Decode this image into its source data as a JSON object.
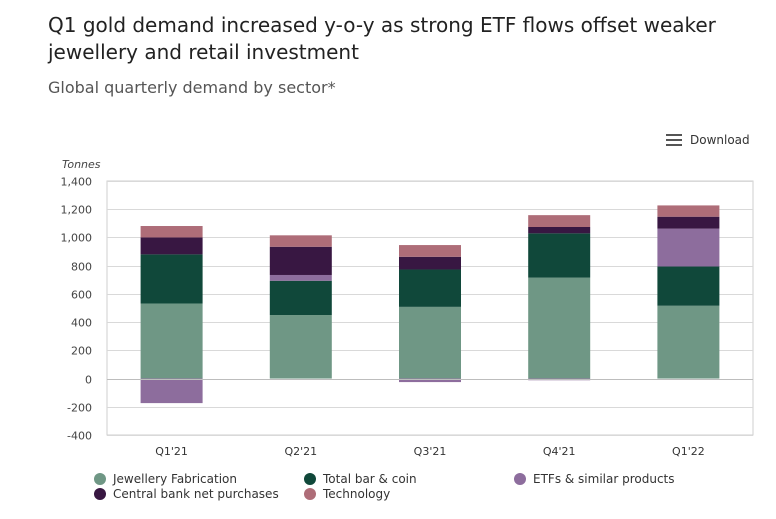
{
  "title": "Q1 gold demand increased y-o-y as strong ETF flows offset weaker jewellery and retail investment",
  "subtitle": "Global quarterly demand by sector*",
  "download_label": "Download",
  "chart_data": {
    "type": "bar",
    "stacked": true,
    "categories": [
      "Q1'21",
      "Q2'21",
      "Q3'21",
      "Q4'21",
      "Q1'22"
    ],
    "ylabel": "Tonnes",
    "ylim": [
      -400,
      1400
    ],
    "yticks": [
      "1,400",
      "1,200",
      "1,000",
      "800",
      "600",
      "400",
      "200",
      "0",
      "-200",
      "-400"
    ],
    "grid": true,
    "legend_position": "bottom",
    "series": [
      {
        "name": "Jewellery Fabrication",
        "color": "#6f9785",
        "values": [
          532,
          450,
          508,
          716,
          516
        ]
      },
      {
        "name": "Total bar & coin",
        "color": "#10483a",
        "values": [
          348,
          243,
          265,
          313,
          278
        ]
      },
      {
        "name": "ETFs & similar products",
        "color": "#8d6d9d",
        "values": [
          -174,
          41,
          -25,
          -12,
          269
        ]
      },
      {
        "name": "Central bank net purchases",
        "color": "#381742",
        "values": [
          120,
          200,
          90,
          45,
          84
        ]
      },
      {
        "name": "Technology",
        "color": "#ae6d78",
        "values": [
          81,
          81,
          83,
          84,
          80
        ]
      }
    ]
  }
}
